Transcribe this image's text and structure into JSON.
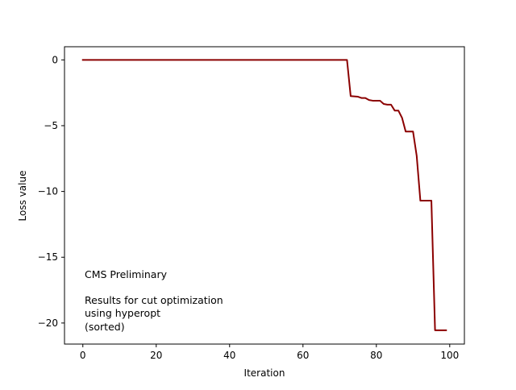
{
  "chart_data": {
    "type": "line",
    "title": "",
    "xlabel": "Iteration",
    "ylabel": "Loss value",
    "xlim": [
      -5,
      104
    ],
    "ylim": [
      -21.6,
      1.0
    ],
    "xticks": [
      0,
      20,
      40,
      60,
      80,
      100
    ],
    "yticks": [
      0,
      -5,
      -10,
      -15,
      -20
    ],
    "xtick_labels": [
      "0",
      "20",
      "40",
      "60",
      "80",
      "100"
    ],
    "ytick_labels": [
      "0",
      "−5",
      "−10",
      "−15",
      "−20"
    ],
    "grid": false,
    "line_color": "#8b0000",
    "annotation_lines": [
      "CMS Preliminary",
      "",
      "Results for cut optimization",
      "using hyperopt",
      "(sorted)"
    ],
    "series": [
      {
        "x": [
          0,
          72,
          73,
          75,
          76,
          77,
          78,
          79,
          80,
          81,
          82,
          83,
          84,
          85,
          86,
          87,
          88,
          89,
          90,
          91,
          92,
          93,
          94,
          95,
          96,
          97,
          98,
          99
        ],
        "y": [
          0,
          0,
          -2.75,
          -2.8,
          -2.9,
          -2.9,
          -3.05,
          -3.1,
          -3.1,
          -3.1,
          -3.35,
          -3.4,
          -3.4,
          -3.85,
          -3.85,
          -4.4,
          -5.45,
          -5.45,
          -5.45,
          -7.3,
          -10.7,
          -10.7,
          -10.7,
          -10.7,
          -20.55,
          -20.55,
          -20.55,
          -20.55
        ]
      }
    ]
  }
}
